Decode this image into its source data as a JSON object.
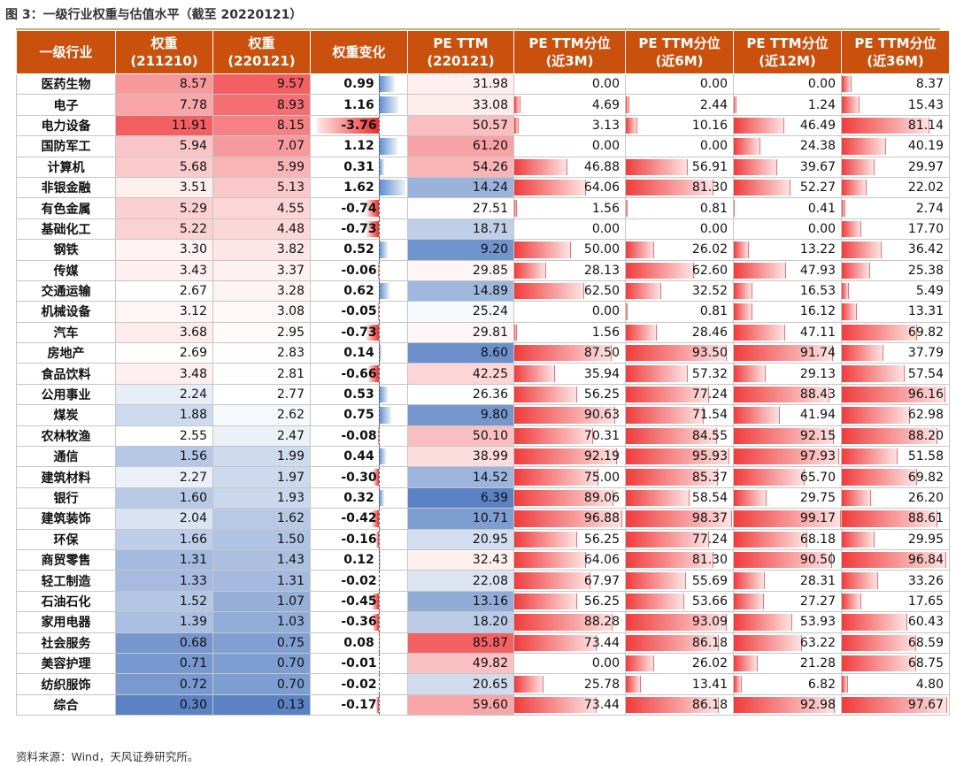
{
  "title": "图 3：一级行业权重与估值水平（截至 20220121）",
  "source": "资料来源：Wind，天风证券研究所。",
  "columns": [
    {
      "line1": "一级行业",
      "line2": ""
    },
    {
      "line1": "权重",
      "line2": "(211210)"
    },
    {
      "line1": "权重",
      "line2": "(220121)"
    },
    {
      "line1": "权重变化",
      "line2": ""
    },
    {
      "line1": "PE TTM",
      "line2": "(220121)"
    },
    {
      "line1": "PE TTM分位",
      "line2": "(近3M)"
    },
    {
      "line1": "PE TTM分位",
      "line2": "(近6M)"
    },
    {
      "line1": "PE TTM分位",
      "line2": "(近12M)"
    },
    {
      "line1": "PE TTM分位",
      "line2": "(近36M)"
    }
  ],
  "colors": {
    "header_bg": "#c9500d",
    "bar_red": "#f03c3c",
    "bar_blue": "#4a7ac0"
  },
  "rows": [
    {
      "name": "医药生物",
      "w1": "8.57",
      "w2": "9.57",
      "chg": "0.99",
      "pe": "31.98",
      "p3": "0.00",
      "p6": "0.00",
      "p12": "0.00",
      "p36": "8.37"
    },
    {
      "name": "电子",
      "w1": "7.78",
      "w2": "8.93",
      "chg": "1.16",
      "pe": "33.08",
      "p3": "4.69",
      "p6": "2.44",
      "p12": "1.24",
      "p36": "15.43"
    },
    {
      "name": "电力设备",
      "w1": "11.91",
      "w2": "8.15",
      "chg": "-3.76",
      "pe": "50.57",
      "p3": "3.13",
      "p6": "10.16",
      "p12": "46.49",
      "p36": "81.14"
    },
    {
      "name": "国防军工",
      "w1": "5.94",
      "w2": "7.07",
      "chg": "1.12",
      "pe": "61.20",
      "p3": "0.00",
      "p6": "0.00",
      "p12": "24.38",
      "p36": "40.19"
    },
    {
      "name": "计算机",
      "w1": "5.68",
      "w2": "5.99",
      "chg": "0.31",
      "pe": "54.26",
      "p3": "46.88",
      "p6": "56.91",
      "p12": "39.67",
      "p36": "29.97"
    },
    {
      "name": "非银金融",
      "w1": "3.51",
      "w2": "5.13",
      "chg": "1.62",
      "pe": "14.24",
      "p3": "64.06",
      "p6": "81.30",
      "p12": "52.27",
      "p36": "22.02"
    },
    {
      "name": "有色金属",
      "w1": "5.29",
      "w2": "4.55",
      "chg": "-0.74",
      "pe": "27.51",
      "p3": "1.56",
      "p6": "0.81",
      "p12": "0.41",
      "p36": "2.74"
    },
    {
      "name": "基础化工",
      "w1": "5.22",
      "w2": "4.48",
      "chg": "-0.73",
      "pe": "18.71",
      "p3": "0.00",
      "p6": "0.00",
      "p12": "0.00",
      "p36": "17.70"
    },
    {
      "name": "钢铁",
      "w1": "3.30",
      "w2": "3.82",
      "chg": "0.52",
      "pe": "9.20",
      "p3": "50.00",
      "p6": "26.02",
      "p12": "13.22",
      "p36": "36.42"
    },
    {
      "name": "传媒",
      "w1": "3.43",
      "w2": "3.37",
      "chg": "-0.06",
      "pe": "29.85",
      "p3": "28.13",
      "p6": "62.60",
      "p12": "47.93",
      "p36": "25.38"
    },
    {
      "name": "交通运输",
      "w1": "2.67",
      "w2": "3.28",
      "chg": "0.62",
      "pe": "14.89",
      "p3": "62.50",
      "p6": "32.52",
      "p12": "16.53",
      "p36": "5.49"
    },
    {
      "name": "机械设备",
      "w1": "3.12",
      "w2": "3.08",
      "chg": "-0.05",
      "pe": "25.24",
      "p3": "0.00",
      "p6": "0.81",
      "p12": "16.12",
      "p36": "13.31"
    },
    {
      "name": "汽车",
      "w1": "3.68",
      "w2": "2.95",
      "chg": "-0.73",
      "pe": "29.81",
      "p3": "1.56",
      "p6": "28.46",
      "p12": "47.11",
      "p36": "69.82"
    },
    {
      "name": "房地产",
      "w1": "2.69",
      "w2": "2.83",
      "chg": "0.14",
      "pe": "8.60",
      "p3": "87.50",
      "p6": "93.50",
      "p12": "91.74",
      "p36": "37.79"
    },
    {
      "name": "食品饮料",
      "w1": "3.48",
      "w2": "2.81",
      "chg": "-0.66",
      "pe": "42.25",
      "p3": "35.94",
      "p6": "57.32",
      "p12": "29.13",
      "p36": "57.54"
    },
    {
      "name": "公用事业",
      "w1": "2.24",
      "w2": "2.77",
      "chg": "0.53",
      "pe": "26.36",
      "p3": "56.25",
      "p6": "77.24",
      "p12": "88.43",
      "p36": "96.16"
    },
    {
      "name": "煤炭",
      "w1": "1.88",
      "w2": "2.62",
      "chg": "0.75",
      "pe": "9.80",
      "p3": "90.63",
      "p6": "71.54",
      "p12": "41.94",
      "p36": "62.98"
    },
    {
      "name": "农林牧渔",
      "w1": "2.55",
      "w2": "2.47",
      "chg": "-0.08",
      "pe": "50.10",
      "p3": "70.31",
      "p6": "84.55",
      "p12": "92.15",
      "p36": "88.20"
    },
    {
      "name": "通信",
      "w1": "1.56",
      "w2": "1.99",
      "chg": "0.44",
      "pe": "38.99",
      "p3": "92.19",
      "p6": "95.93",
      "p12": "97.93",
      "p36": "51.58"
    },
    {
      "name": "建筑材料",
      "w1": "2.27",
      "w2": "1.97",
      "chg": "-0.30",
      "pe": "14.52",
      "p3": "75.00",
      "p6": "85.37",
      "p12": "65.70",
      "p36": "69.82"
    },
    {
      "name": "银行",
      "w1": "1.60",
      "w2": "1.93",
      "chg": "0.32",
      "pe": "6.39",
      "p3": "89.06",
      "p6": "58.54",
      "p12": "29.75",
      "p36": "26.20"
    },
    {
      "name": "建筑装饰",
      "w1": "2.04",
      "w2": "1.62",
      "chg": "-0.42",
      "pe": "10.71",
      "p3": "96.88",
      "p6": "98.37",
      "p12": "99.17",
      "p36": "88.61"
    },
    {
      "name": "环保",
      "w1": "1.66",
      "w2": "1.50",
      "chg": "-0.16",
      "pe": "20.95",
      "p3": "56.25",
      "p6": "77.24",
      "p12": "68.18",
      "p36": "29.95"
    },
    {
      "name": "商贸零售",
      "w1": "1.31",
      "w2": "1.43",
      "chg": "0.12",
      "pe": "32.43",
      "p3": "64.06",
      "p6": "81.30",
      "p12": "90.50",
      "p36": "96.84"
    },
    {
      "name": "轻工制造",
      "w1": "1.33",
      "w2": "1.31",
      "chg": "-0.02",
      "pe": "22.08",
      "p3": "67.97",
      "p6": "55.69",
      "p12": "28.31",
      "p36": "33.26"
    },
    {
      "name": "石油石化",
      "w1": "1.52",
      "w2": "1.07",
      "chg": "-0.45",
      "pe": "13.16",
      "p3": "56.25",
      "p6": "53.66",
      "p12": "27.27",
      "p36": "17.65"
    },
    {
      "name": "家用电器",
      "w1": "1.39",
      "w2": "1.03",
      "chg": "-0.36",
      "pe": "18.20",
      "p3": "88.28",
      "p6": "93.09",
      "p12": "53.93",
      "p36": "60.43"
    },
    {
      "name": "社会服务",
      "w1": "0.68",
      "w2": "0.75",
      "chg": "0.08",
      "pe": "85.87",
      "p3": "73.44",
      "p6": "86.18",
      "p12": "63.22",
      "p36": "68.59"
    },
    {
      "name": "美容护理",
      "w1": "0.71",
      "w2": "0.70",
      "chg": "-0.01",
      "pe": "49.82",
      "p3": "0.00",
      "p6": "26.02",
      "p12": "21.28",
      "p36": "68.75"
    },
    {
      "name": "纺织服饰",
      "w1": "0.72",
      "w2": "0.70",
      "chg": "-0.02",
      "pe": "20.65",
      "p3": "25.78",
      "p6": "13.41",
      "p12": "6.82",
      "p36": "4.80"
    },
    {
      "name": "综合",
      "w1": "0.30",
      "w2": "0.13",
      "chg": "-0.17",
      "pe": "59.60",
      "p3": "73.44",
      "p6": "86.18",
      "p12": "92.98",
      "p36": "97.67"
    }
  ]
}
